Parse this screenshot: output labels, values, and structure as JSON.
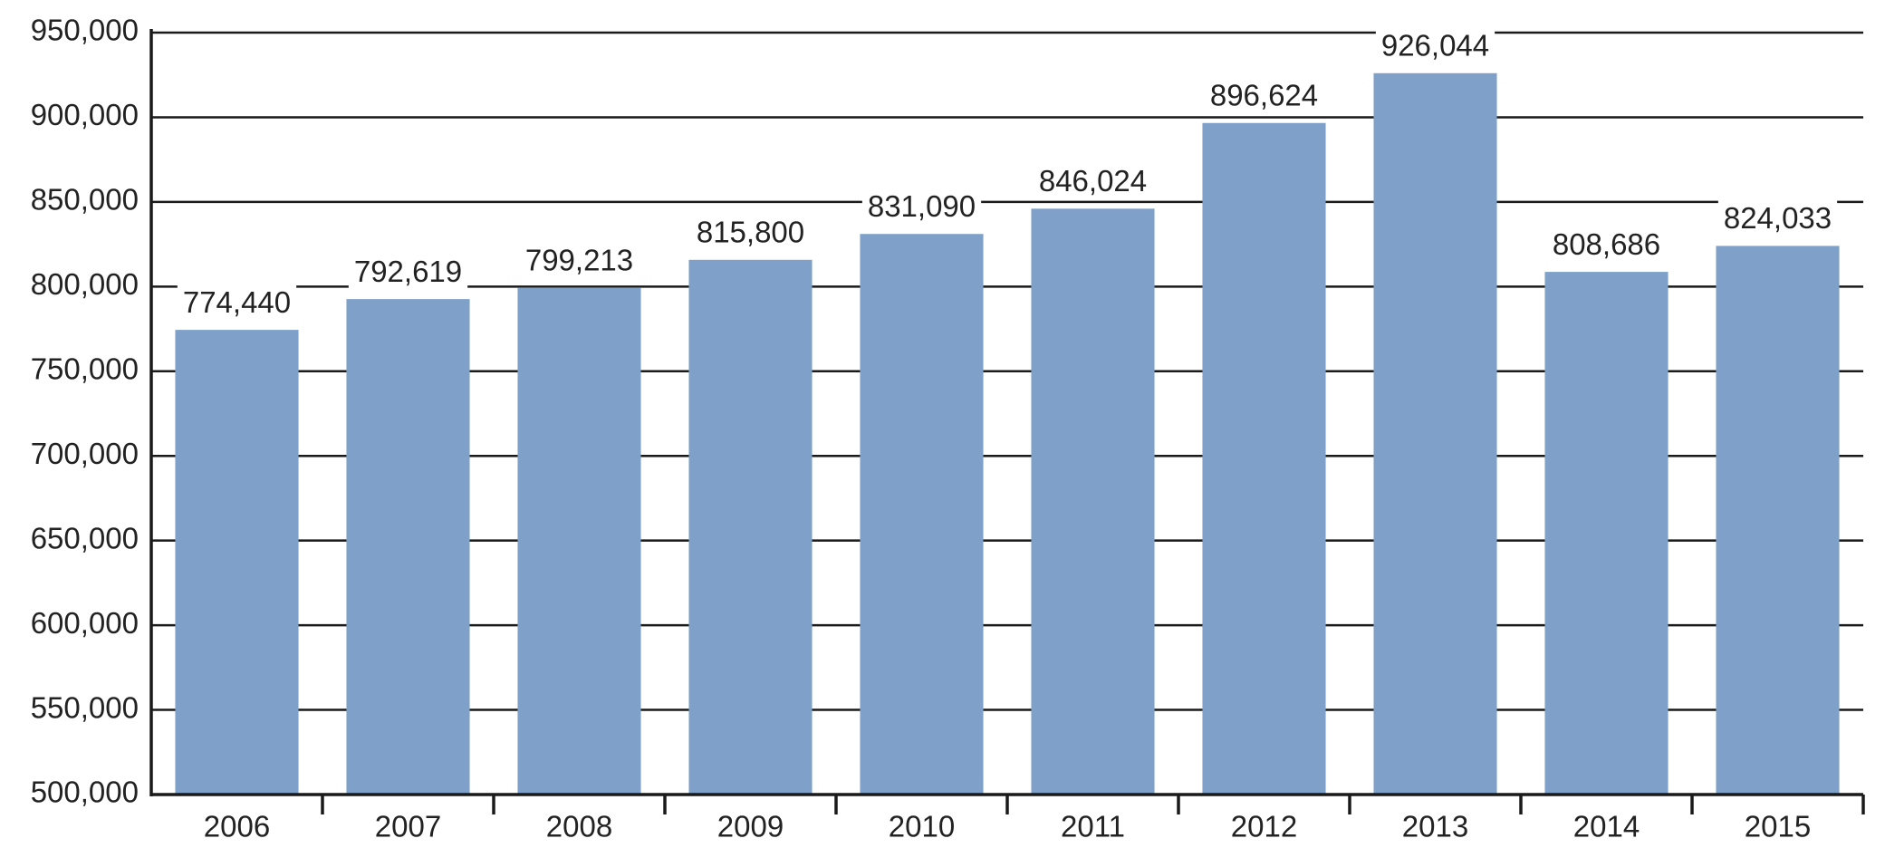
{
  "chart_data": {
    "type": "bar",
    "categories": [
      "2006",
      "2007",
      "2008",
      "2009",
      "2010",
      "2011",
      "2012",
      "2013",
      "2014",
      "2015"
    ],
    "values": [
      774440,
      792619,
      799213,
      815800,
      831090,
      846024,
      896624,
      926044,
      808686,
      824033
    ],
    "value_labels": [
      "774,440",
      "792,619",
      "799,213",
      "815,800",
      "831,090",
      "846,024",
      "896,624",
      "926,044",
      "808,686",
      "824,033"
    ],
    "color": "#7ea0c9",
    "ylim": [
      500000,
      950000
    ],
    "yticks": [
      {
        "value": 500000,
        "label": "500,000"
      },
      {
        "value": 550000,
        "label": "550,000"
      },
      {
        "value": 600000,
        "label": "600,000"
      },
      {
        "value": 650000,
        "label": "650,000"
      },
      {
        "value": 700000,
        "label": "700,000"
      },
      {
        "value": 750000,
        "label": "750,000"
      },
      {
        "value": 800000,
        "label": "800,000"
      },
      {
        "value": 850000,
        "label": "850,000"
      },
      {
        "value": 900000,
        "label": "900,000"
      },
      {
        "value": 950000,
        "label": "950,000"
      }
    ],
    "grid": true
  }
}
